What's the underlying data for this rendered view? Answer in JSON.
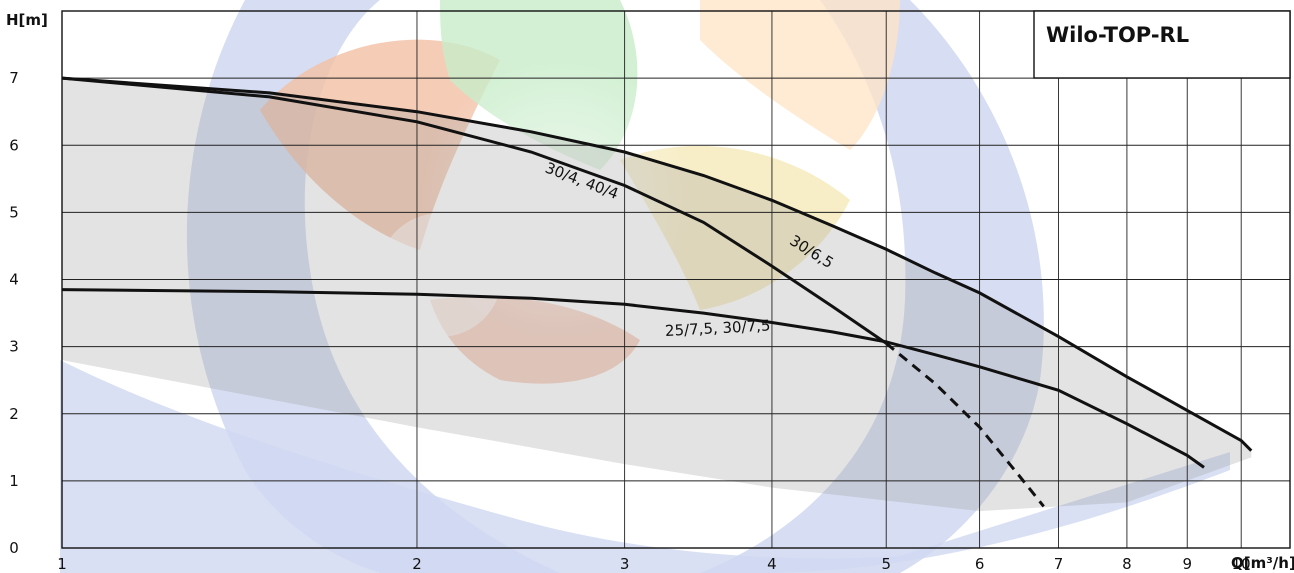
{
  "chart_data": {
    "type": "line",
    "title": "Wilo-TOP-RL",
    "xlabel": "Q[m³/h]",
    "ylabel": "H[m]",
    "x_scale": "log",
    "xlim": [
      1,
      11
    ],
    "ylim": [
      0,
      8
    ],
    "x_ticks": [
      1,
      2,
      3,
      4,
      5,
      6,
      7,
      8,
      9,
      10
    ],
    "y_ticks": [
      0,
      1,
      2,
      3,
      4,
      5,
      6,
      7
    ],
    "grid": true,
    "series": [
      {
        "name": "30/6,5",
        "x": [
          1.0,
          1.5,
          2.0,
          2.5,
          3.0,
          3.5,
          4.0,
          4.5,
          5.0,
          5.5,
          6.0,
          7.0,
          8.0,
          9.0,
          10.0,
          10.2
        ],
        "y": [
          7.0,
          6.78,
          6.5,
          6.2,
          5.9,
          5.55,
          5.18,
          4.8,
          4.45,
          4.1,
          3.8,
          3.15,
          2.55,
          2.05,
          1.6,
          1.45
        ]
      },
      {
        "name": "30/4, 40/4",
        "x": [
          1.0,
          1.5,
          2.0,
          2.5,
          3.0,
          3.5,
          4.0,
          4.5,
          5.0
        ],
        "y": [
          7.0,
          6.72,
          6.35,
          5.9,
          5.4,
          4.85,
          4.2,
          3.6,
          3.05
        ]
      },
      {
        "name": "30/4, 40/4 (extension)",
        "x": [
          5.0,
          5.5,
          6.0,
          6.5,
          6.8
        ],
        "y": [
          3.05,
          2.45,
          1.8,
          1.05,
          0.62
        ],
        "dashed": true
      },
      {
        "name": "25/7,5, 30/7,5",
        "x": [
          1.0,
          1.5,
          2.0,
          2.5,
          3.0,
          3.5,
          4.0,
          4.5,
          5.0,
          5.5,
          6.0,
          7.0,
          8.0,
          9.0,
          9.3
        ],
        "y": [
          3.85,
          3.82,
          3.78,
          3.72,
          3.63,
          3.5,
          3.36,
          3.22,
          3.07,
          2.88,
          2.7,
          2.35,
          1.85,
          1.38,
          1.2
        ]
      }
    ],
    "curve_labels": [
      {
        "text": "30/4, 40/4",
        "x": 2.75,
        "y": 5.4,
        "angle": 21
      },
      {
        "text": "30/6,5",
        "x": 4.3,
        "y": 4.35,
        "angle": 32
      },
      {
        "text": "25/7,5, 30/7,5",
        "x": 3.6,
        "y": 3.2,
        "angle": -3
      }
    ]
  }
}
